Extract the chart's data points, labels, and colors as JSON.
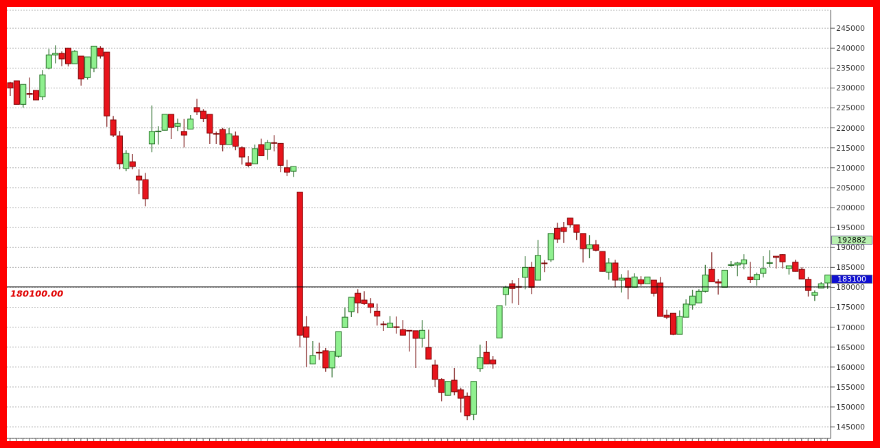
{
  "chart_data": {
    "type": "candlestick",
    "categories": [
      null,
      null,
      null,
      null,
      null,
      null,
      null,
      null,
      null,
      null,
      null,
      null,
      null,
      null,
      null,
      null,
      null,
      null,
      null,
      null,
      null,
      null,
      null,
      null,
      null,
      null,
      null,
      null,
      null,
      null,
      null,
      null,
      null,
      null,
      null,
      null,
      null,
      null,
      null,
      null,
      null,
      null,
      null,
      null,
      null,
      null,
      null,
      null,
      null,
      null,
      null,
      null,
      null,
      null,
      null,
      null,
      null,
      null,
      null,
      null,
      null,
      null,
      null,
      null,
      null,
      null,
      null,
      null,
      null,
      null,
      null,
      null,
      null,
      null,
      null,
      null,
      null,
      null,
      null,
      null,
      null,
      null,
      null,
      null,
      null,
      null,
      null,
      null,
      null,
      null,
      null,
      null,
      null,
      null,
      null,
      null,
      null,
      null,
      null,
      null,
      null,
      null,
      null,
      null,
      null,
      null,
      null,
      null,
      null,
      null,
      null,
      null,
      null,
      null,
      null,
      null,
      null,
      null,
      null,
      null,
      null,
      null,
      null,
      null,
      null,
      null,
      null,
      null
    ],
    "ohlc": [
      [
        231300,
        231500,
        228000,
        230000
      ],
      [
        231800,
        231800,
        225900,
        225900
      ],
      [
        225900,
        230900,
        225100,
        230900
      ],
      [
        228600,
        232600,
        227500,
        228400
      ],
      [
        229400,
        229400,
        227000,
        227000
      ],
      [
        227800,
        234500,
        227000,
        233300
      ],
      [
        235000,
        239800,
        234700,
        238300
      ],
      [
        238300,
        240700,
        236200,
        238700
      ],
      [
        238700,
        239200,
        235500,
        237300
      ],
      [
        240000,
        240000,
        235400,
        236100
      ],
      [
        236100,
        239500,
        236100,
        239200
      ],
      [
        238000,
        238000,
        230600,
        232300
      ],
      [
        232600,
        237800,
        232100,
        237800
      ],
      [
        235000,
        240500,
        234000,
        240500
      ],
      [
        240000,
        240500,
        237400,
        238000
      ],
      [
        239000,
        239000,
        220300,
        223000
      ],
      [
        222000,
        223000,
        217700,
        218200
      ],
      [
        218000,
        219200,
        209600,
        211000
      ],
      [
        209800,
        214400,
        209100,
        213600
      ],
      [
        211500,
        213400,
        209600,
        210300
      ],
      [
        207900,
        209600,
        203400,
        206900
      ],
      [
        207000,
        208700,
        200300,
        202200
      ],
      [
        216000,
        225600,
        213900,
        219100
      ],
      [
        219000,
        220400,
        215800,
        219200
      ],
      [
        219400,
        223400,
        219400,
        223400
      ],
      [
        223400,
        223400,
        217200,
        220100
      ],
      [
        220400,
        222300,
        219200,
        221100
      ],
      [
        219100,
        222200,
        215100,
        218200
      ],
      [
        219700,
        223200,
        219700,
        222200
      ],
      [
        225100,
        227300,
        223200,
        224000
      ],
      [
        224200,
        224700,
        221500,
        222300
      ],
      [
        223400,
        223400,
        216000,
        218700
      ],
      [
        218600,
        219100,
        216000,
        218400
      ],
      [
        219600,
        220000,
        214100,
        215800
      ],
      [
        215800,
        220000,
        215800,
        218500
      ],
      [
        218000,
        219100,
        214400,
        215400
      ],
      [
        215000,
        215400,
        210800,
        212700
      ],
      [
        211200,
        212900,
        210100,
        210600
      ],
      [
        211000,
        215800,
        211000,
        214800
      ],
      [
        215800,
        217300,
        213000,
        213000
      ],
      [
        214600,
        217000,
        212000,
        216300
      ],
      [
        216300,
        218200,
        214100,
        216200
      ],
      [
        216100,
        216100,
        208900,
        210600
      ],
      [
        210000,
        212000,
        207900,
        208900
      ],
      [
        209100,
        210300,
        207700,
        210300
      ],
      [
        203900,
        203900,
        164900,
        168000
      ],
      [
        170100,
        172800,
        160000,
        167500
      ],
      [
        160800,
        166500,
        160800,
        162900
      ],
      [
        163700,
        166100,
        161800,
        163600
      ],
      [
        164100,
        164800,
        158800,
        159800
      ],
      [
        159800,
        163900,
        157400,
        163900
      ],
      [
        162700,
        168900,
        162400,
        168900
      ],
      [
        169900,
        174900,
        169900,
        172500
      ],
      [
        173900,
        177500,
        172500,
        177500
      ],
      [
        178500,
        179500,
        173500,
        176100
      ],
      [
        176800,
        179000,
        175600,
        175900
      ],
      [
        175900,
        177300,
        173500,
        175000
      ],
      [
        174000,
        175900,
        170400,
        172800
      ],
      [
        170800,
        171500,
        169100,
        170700
      ],
      [
        169900,
        172800,
        169900,
        171000
      ],
      [
        170100,
        172700,
        168400,
        170000
      ],
      [
        169400,
        171800,
        168000,
        168000
      ],
      [
        169200,
        169200,
        163900,
        169100
      ],
      [
        169100,
        169100,
        159800,
        167200
      ],
      [
        167200,
        171800,
        164900,
        169200
      ],
      [
        164900,
        169400,
        162000,
        162000
      ],
      [
        160500,
        161800,
        155000,
        156900
      ],
      [
        156900,
        157200,
        151400,
        153600
      ],
      [
        152900,
        156400,
        152900,
        156400
      ],
      [
        156700,
        159800,
        152900,
        153800
      ],
      [
        154300,
        154800,
        148600,
        152200
      ],
      [
        152700,
        153600,
        146700,
        147800
      ],
      [
        148100,
        156400,
        146700,
        156400
      ],
      [
        159600,
        165600,
        158800,
        162400
      ],
      [
        163700,
        166500,
        160800,
        160800
      ],
      [
        161800,
        162700,
        159600,
        160800
      ],
      [
        167300,
        175400,
        167300,
        175400
      ],
      [
        178200,
        180400,
        175400,
        180000
      ],
      [
        180900,
        181800,
        176000,
        179700
      ],
      [
        180200,
        182300,
        175600,
        180100
      ],
      [
        182500,
        187800,
        179500,
        185000
      ],
      [
        185000,
        186400,
        178300,
        180000
      ],
      [
        181800,
        191900,
        181800,
        188000
      ],
      [
        186100,
        186800,
        183800,
        186000
      ],
      [
        186900,
        193500,
        186400,
        193500
      ],
      [
        194800,
        196200,
        191100,
        192100
      ],
      [
        195000,
        196400,
        191100,
        194000
      ],
      [
        197400,
        197400,
        195000,
        195700
      ],
      [
        195700,
        195700,
        191900,
        193800
      ],
      [
        193500,
        193500,
        186200,
        189700
      ],
      [
        189700,
        193100,
        187300,
        190700
      ],
      [
        190700,
        191900,
        189000,
        189300
      ],
      [
        189000,
        189000,
        184000,
        184000
      ],
      [
        183800,
        187300,
        181900,
        186100
      ],
      [
        186100,
        186900,
        180000,
        181800
      ],
      [
        181800,
        183300,
        178700,
        182300
      ],
      [
        182300,
        184300,
        177000,
        180000
      ],
      [
        180000,
        183500,
        180000,
        182600
      ],
      [
        181900,
        182800,
        180400,
        180900
      ],
      [
        180900,
        182600,
        180900,
        182600
      ],
      [
        181800,
        181800,
        177700,
        178500
      ],
      [
        181100,
        182600,
        172700,
        172700
      ],
      [
        173000,
        174400,
        172000,
        172500
      ],
      [
        173500,
        173500,
        168000,
        168200
      ],
      [
        168200,
        174200,
        168200,
        172700
      ],
      [
        172500,
        177000,
        172500,
        175800
      ],
      [
        175600,
        179400,
        174400,
        177800
      ],
      [
        176100,
        179500,
        176100,
        179000
      ],
      [
        179000,
        185600,
        178700,
        183100
      ],
      [
        184500,
        188800,
        181400,
        181400
      ],
      [
        181400,
        182100,
        178200,
        181100
      ],
      [
        180000,
        184300,
        180000,
        184300
      ],
      [
        185500,
        186600,
        185200,
        185700
      ],
      [
        185600,
        186400,
        182800,
        186100
      ],
      [
        185900,
        188300,
        184500,
        186900
      ],
      [
        182600,
        186400,
        181100,
        181900
      ],
      [
        181900,
        183700,
        180400,
        183200
      ],
      [
        183500,
        187800,
        182500,
        184700
      ],
      [
        186000,
        189300,
        185000,
        186200
      ],
      [
        187800,
        187800,
        184700,
        187500
      ],
      [
        188200,
        188300,
        184700,
        186400
      ],
      [
        184700,
        185400,
        183200,
        185400
      ],
      [
        186300,
        186900,
        184000,
        184000
      ],
      [
        184500,
        185000,
        182100,
        182100
      ],
      [
        182000,
        182600,
        177700,
        179200
      ],
      [
        178000,
        179200,
        176600,
        178700
      ],
      [
        179800,
        181300,
        179800,
        180900
      ],
      [
        181100,
        183100,
        179600,
        183100
      ]
    ],
    "ylim": [
      142100,
      249500
    ],
    "yticks": [
      145000,
      150000,
      155000,
      160000,
      165000,
      170000,
      175000,
      180000,
      185000,
      190000,
      195000,
      200000,
      205000,
      210000,
      215000,
      220000,
      225000,
      230000,
      235000,
      240000,
      245000
    ],
    "grid": "y",
    "tick_labels": "y",
    "ref_lines": [
      {
        "axis": "y",
        "value": 180100,
        "label": "180100.00",
        "color": "#000000"
      }
    ],
    "annotations": [
      "192882",
      "183100"
    ]
  }
}
